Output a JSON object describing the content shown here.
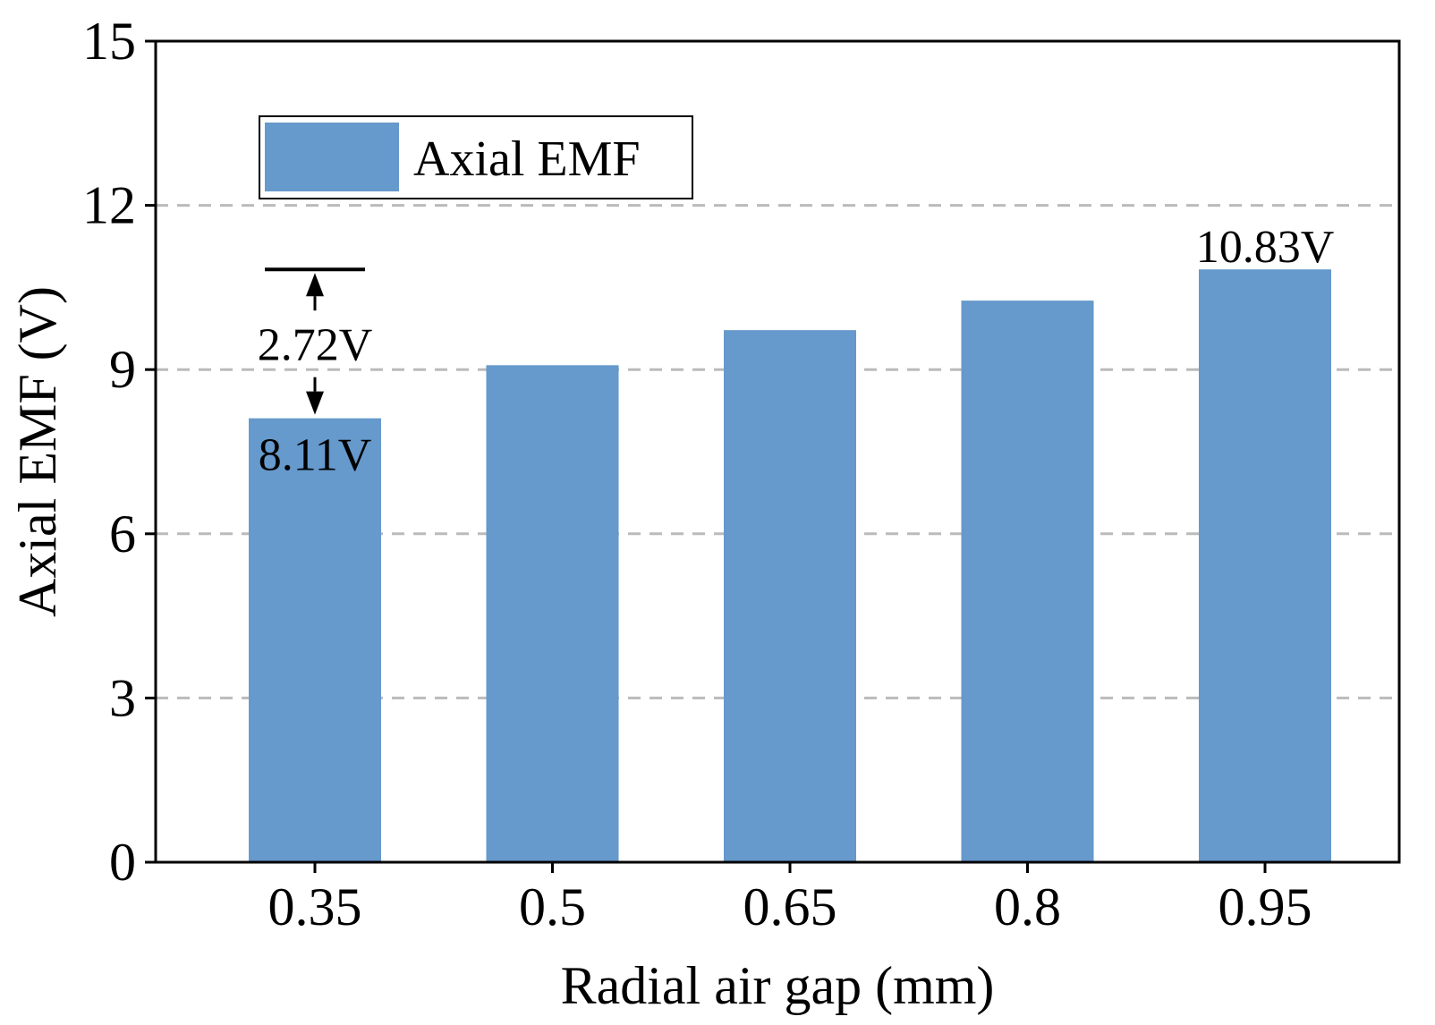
{
  "chart_data": {
    "type": "bar",
    "categories": [
      "0.35",
      "0.5",
      "0.65",
      "0.8",
      "0.95"
    ],
    "series": [
      {
        "name": "Axial EMF",
        "values": [
          8.11,
          9.08,
          9.72,
          10.26,
          10.83
        ]
      }
    ],
    "xlabel": "Radial air gap (mm)",
    "ylabel": "Axial EMF (V)",
    "ylim": [
      0,
      15
    ],
    "yticks": [
      0,
      3,
      6,
      9,
      12,
      15
    ],
    "grid": "horizontal dashed",
    "legend_position": "top-left",
    "annotations": {
      "first_value": "8.11V",
      "last_value": "10.83V",
      "difference": "2.72V"
    },
    "colors": {
      "bar": "#6699cc",
      "grid": "#bbbbbb",
      "axis": "#000000"
    }
  }
}
